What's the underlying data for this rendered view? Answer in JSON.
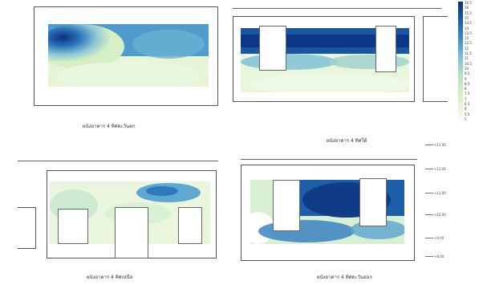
{
  "panels": [
    {
      "caption": "ผนังอาคาร 4 ทิศตะวันตก"
    },
    {
      "caption": "ผนังอาคาร 4 ทิศใต้"
    },
    {
      "caption": "ผนังอาคาร 4 ทิศเหนือ"
    },
    {
      "caption": "ผนังอาคาร 4 ทิศตะวันออก"
    }
  ],
  "legend": {
    "labels": [
      "16.5",
      "16",
      "15.5",
      "15",
      "14.5",
      "14",
      "13.5",
      "13",
      "12.5",
      "12",
      "11.5",
      "11",
      "10.5",
      "10",
      "9.5",
      "9",
      "8.5",
      "8",
      "7.5",
      "7",
      "6.5",
      "6",
      "5.5",
      "5"
    ]
  },
  "elevations": [
    "+13.00",
    "+12.00",
    "+11.00",
    "+10.00",
    "+9.00",
    "+8.00"
  ],
  "colors": {
    "high": "#0b2f7c",
    "mid": "#5aa6d0",
    "low": "#d6efc4",
    "frame": "#555555"
  }
}
